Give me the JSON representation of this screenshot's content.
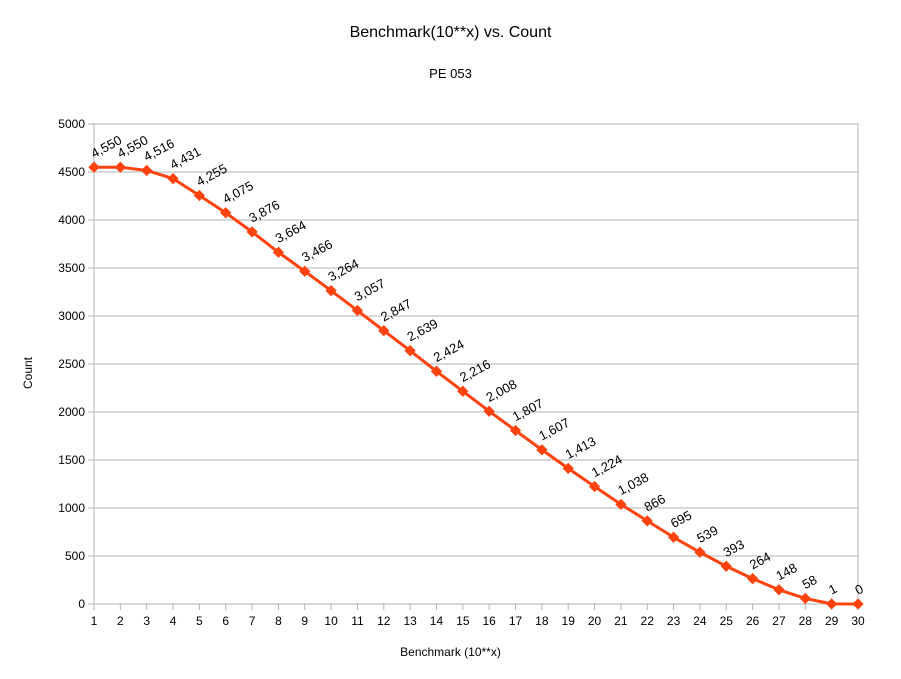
{
  "chart_data": {
    "type": "line",
    "title": "Benchmark(10**x) vs. Count",
    "subtitle": "PE 053",
    "xlabel": "Benchmark (10**x)",
    "ylabel": "Count",
    "x": [
      1,
      2,
      3,
      4,
      5,
      6,
      7,
      8,
      9,
      10,
      11,
      12,
      13,
      14,
      15,
      16,
      17,
      18,
      19,
      20,
      21,
      22,
      23,
      24,
      25,
      26,
      27,
      28,
      29,
      30
    ],
    "series": [
      {
        "values": [
          4550,
          4550,
          4516,
          4431,
          4255,
          4075,
          3876,
          3664,
          3466,
          3264,
          3057,
          2847,
          2639,
          2424,
          2216,
          2008,
          1807,
          1607,
          1413,
          1224,
          1038,
          866,
          695,
          539,
          393,
          264,
          148,
          58,
          1,
          0
        ],
        "data_labels": [
          "4,550",
          "4,550",
          "4,516",
          "4,431",
          "4,255",
          "4,075",
          "3,876",
          "3,664",
          "3,466",
          "3,264",
          "3,057",
          "2,847",
          "2,639",
          "2,424",
          "2,216",
          "2,008",
          "1,807",
          "1,607",
          "1,413",
          "1,224",
          "1,038",
          "866",
          "695",
          "539",
          "393",
          "264",
          "148",
          "58",
          "1",
          "0"
        ],
        "color": "#ff420e"
      }
    ],
    "ylim": [
      0,
      5000
    ],
    "yticks": [
      0,
      500,
      1000,
      1500,
      2000,
      2500,
      3000,
      3500,
      4000,
      4500,
      5000
    ],
    "xticks": [
      1,
      2,
      3,
      4,
      5,
      6,
      7,
      8,
      9,
      10,
      11,
      12,
      13,
      14,
      15,
      16,
      17,
      18,
      19,
      20,
      21,
      22,
      23,
      24,
      25,
      26,
      27,
      28,
      29,
      30
    ],
    "grid": true,
    "legend": "none",
    "colors": {
      "line": "#ff420e",
      "grid": "#b3b3b3",
      "axis": "#b3b3b3"
    }
  }
}
